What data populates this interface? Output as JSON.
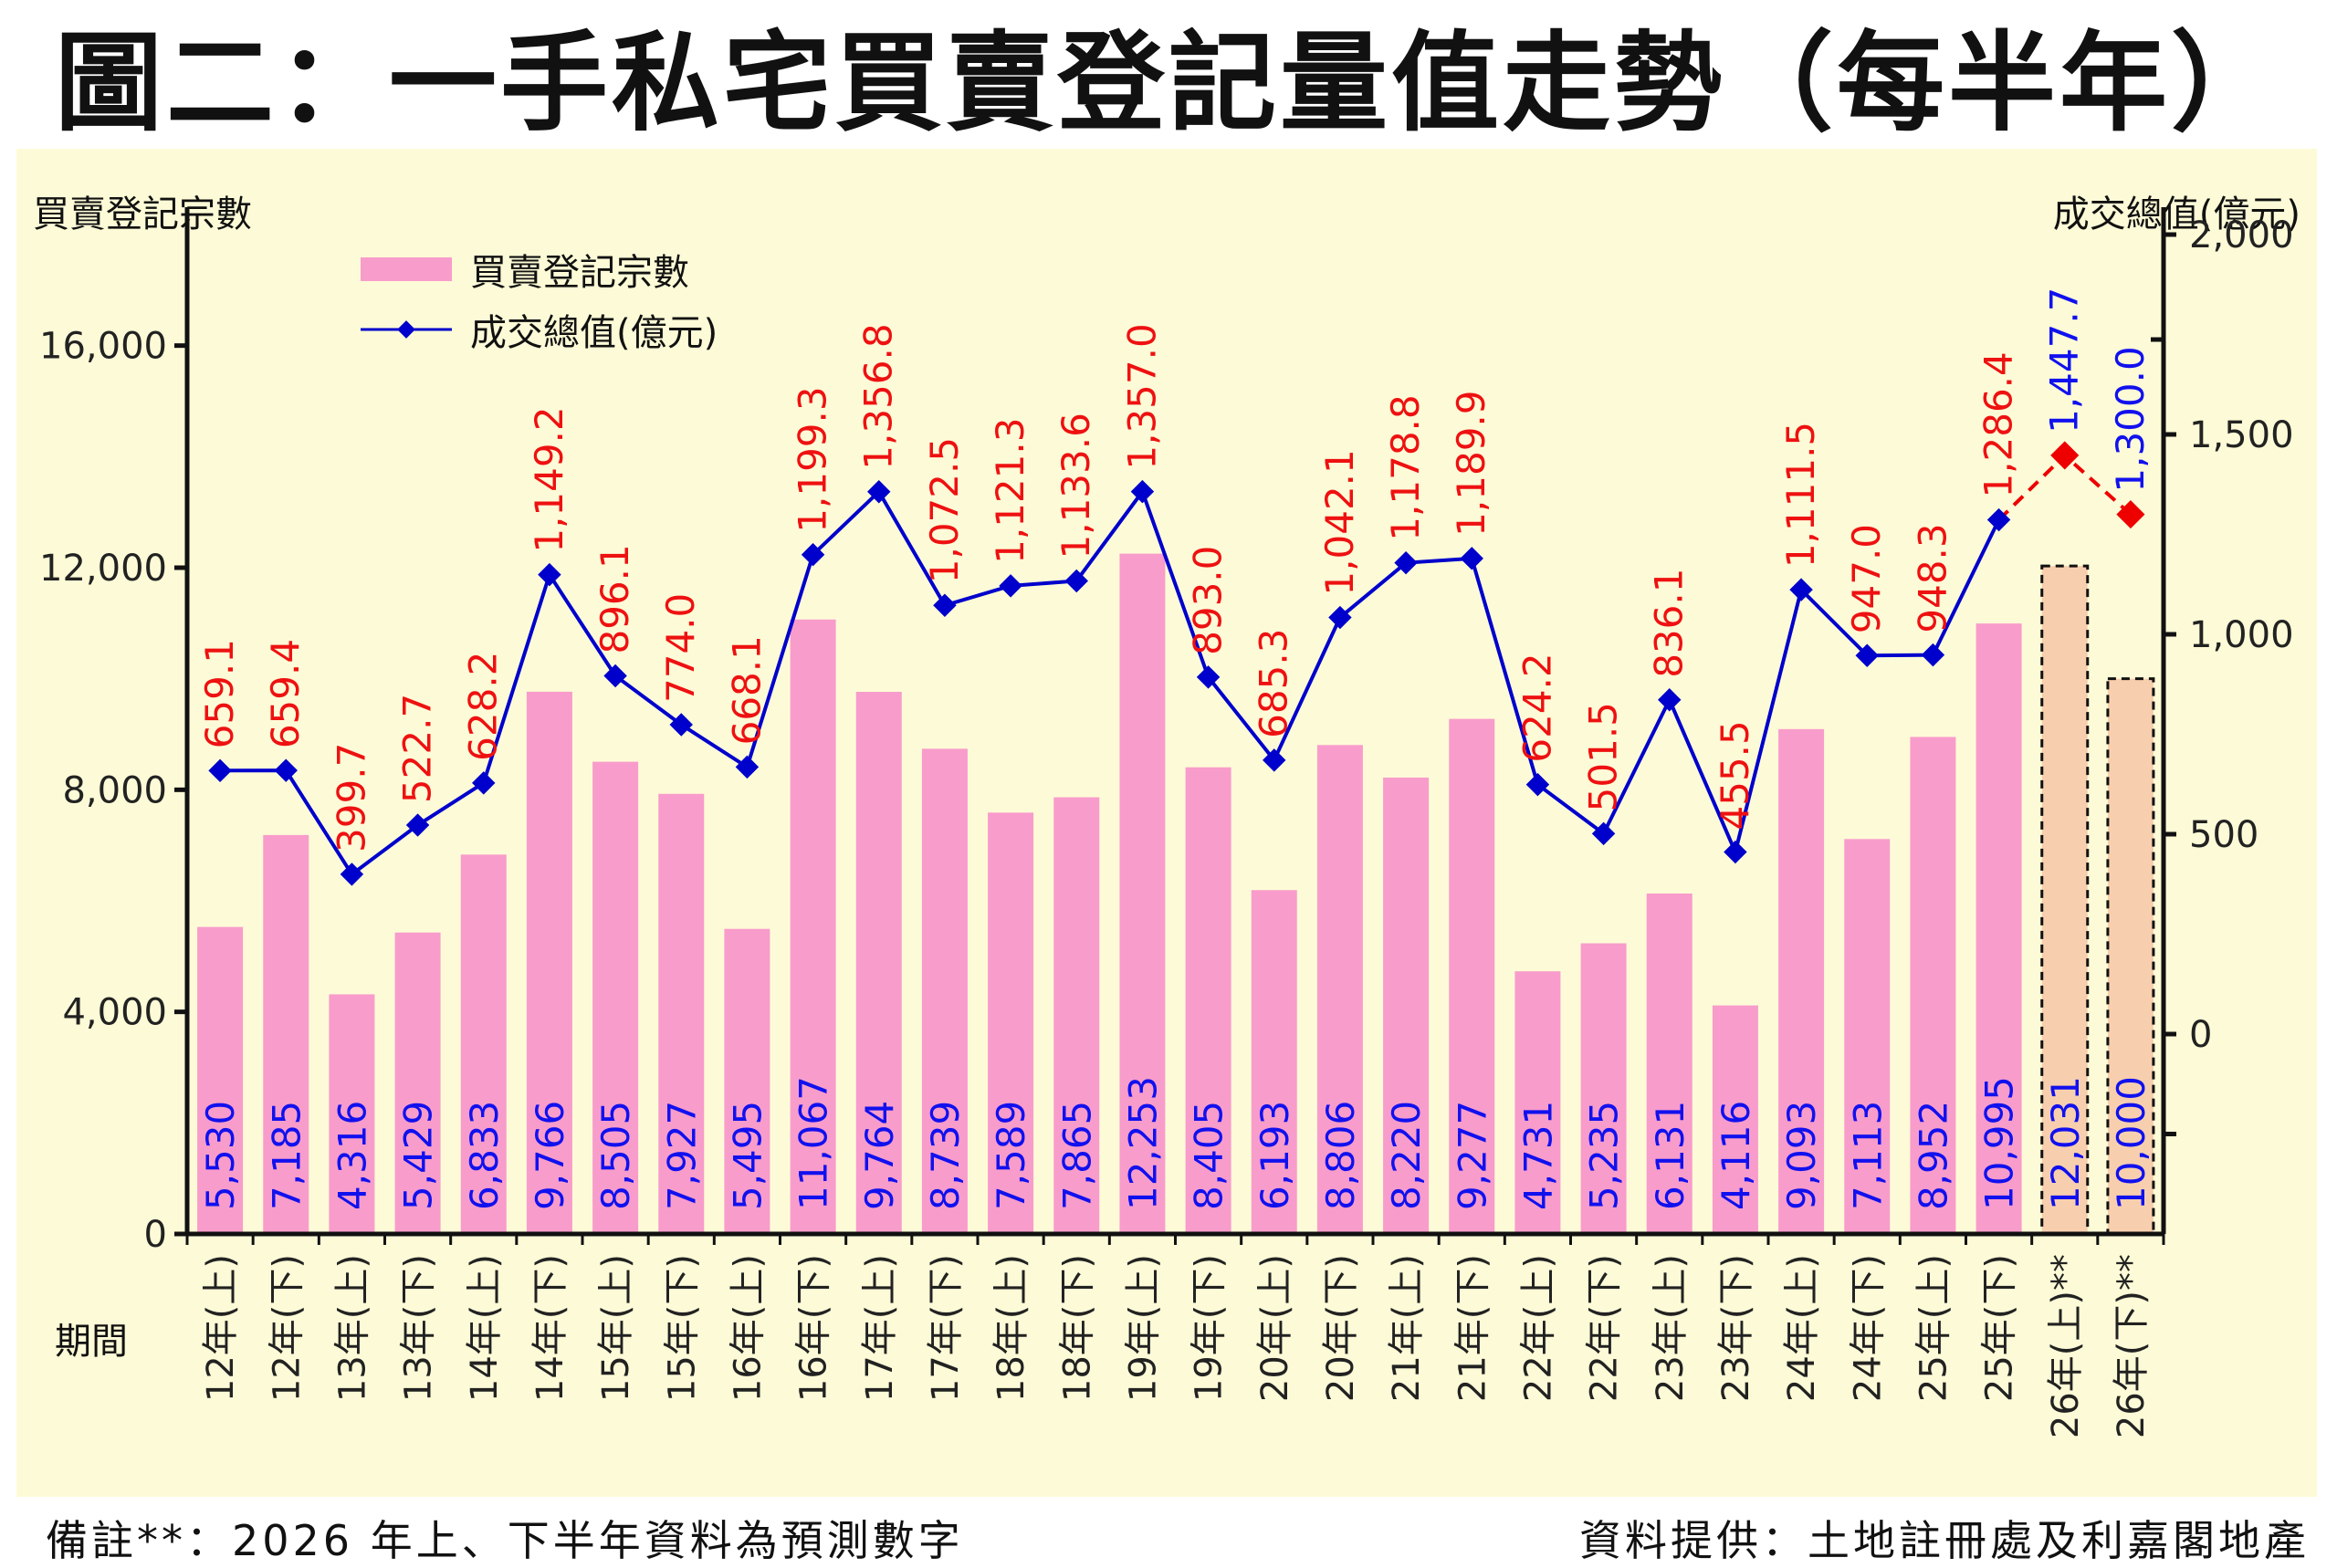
{
  "title": "圖二：一手私宅買賣登記量值走勢（每半年）",
  "footer": {
    "note": "備註**：2026 年上、下半年資料為預測數字",
    "source": "資料提供：土地註冊處及利嘉閣地產"
  },
  "colors": {
    "bar": "#f89ccb",
    "bar_forecast": "#f8cfae",
    "line": "#0000cc",
    "line_forecast": "#ee0000",
    "value_label_actual": "#ee1111",
    "value_label_forecast": "#1111ee",
    "count_label": "#1111ee",
    "background": "#fdfbd7"
  },
  "chart_data": {
    "type": "bar",
    "title": "圖二：一手私宅買賣登記量值走勢（每半年）",
    "xlabel": "期間",
    "ylabel": "買賣登記宗數",
    "y2label": "成交總值(億元)",
    "ylim": [
      0,
      18000
    ],
    "y2lim": [
      -500,
      2000
    ],
    "yticks": [
      "0",
      "4,000",
      "8,000",
      "12,000",
      "16,000"
    ],
    "yticks_values": [
      0,
      4000,
      8000,
      12000,
      16000
    ],
    "y2ticks": [
      "0",
      "500",
      "1,000",
      "1,500",
      "2,000"
    ],
    "y2ticks_values": [
      0,
      500,
      1000,
      1500,
      2000
    ],
    "legend_position": "top-left",
    "grid": false,
    "categories": [
      "12年(上)",
      "12年(下)",
      "13年(上)",
      "13年(下)",
      "14年(上)",
      "14年(下)",
      "15年(上)",
      "15年(下)",
      "16年(上)",
      "16年(下)",
      "17年(上)",
      "17年(下)",
      "18年(上)",
      "18年(下)",
      "19年(上)",
      "19年(下)",
      "20年(上)",
      "20年(下)",
      "21年(上)",
      "21年(下)",
      "22年(上)",
      "22年(下)",
      "23年(上)",
      "23年(下)",
      "24年(上)",
      "24年(下)",
      "25年(上)",
      "25年(下)",
      "26年(上)**",
      "26年(下)**"
    ],
    "forecast_from_index": 28,
    "series": [
      {
        "name": "買賣登記宗數",
        "type": "bar",
        "axis": "left",
        "values": [
          5530,
          7185,
          4316,
          5429,
          6833,
          9766,
          8505,
          7927,
          5495,
          11067,
          9764,
          8739,
          7589,
          7865,
          12253,
          8405,
          6193,
          8806,
          8220,
          9277,
          4731,
          5235,
          6131,
          4116,
          9093,
          7113,
          8952,
          10995,
          12031,
          10000
        ],
        "labels": [
          "5,530",
          "7,185",
          "4,316",
          "5,429",
          "6,833",
          "9,766",
          "8,505",
          "7,927",
          "5,495",
          "11,067",
          "9,764",
          "8,739",
          "7,589",
          "7,865",
          "12,253",
          "8,405",
          "6,193",
          "8,806",
          "8,220",
          "9,277",
          "4,731",
          "5,235",
          "6,131",
          "4,116",
          "9,093",
          "7,113",
          "8,952",
          "10,995",
          "12,031",
          "10,000"
        ]
      },
      {
        "name": "成交總值(億元)",
        "type": "line",
        "axis": "right",
        "values": [
          659.1,
          659.4,
          399.7,
          522.7,
          628.2,
          1149.2,
          896.1,
          774.0,
          668.1,
          1199.3,
          1356.8,
          1072.5,
          1121.3,
          1133.6,
          1357.0,
          893.0,
          685.3,
          1042.1,
          1178.8,
          1189.9,
          624.2,
          501.5,
          836.1,
          455.5,
          1111.5,
          947.0,
          948.3,
          1286.4,
          1447.7,
          1300.0
        ],
        "labels": [
          "659.1",
          "659.4",
          "399.7",
          "522.7",
          "628.2",
          "1,149.2",
          "896.1",
          "774.0",
          "668.1",
          "1,199.3",
          "1,356.8",
          "1,072.5",
          "1,121.3",
          "1,133.6",
          "1,357.0",
          "893.0",
          "685.3",
          "1,042.1",
          "1,178.8",
          "1,189.9",
          "624.2",
          "501.5",
          "836.1",
          "455.5",
          "1,111.5",
          "947.0",
          "948.3",
          "1,286.4",
          "1,447.7",
          "1,300.0"
        ]
      }
    ]
  }
}
